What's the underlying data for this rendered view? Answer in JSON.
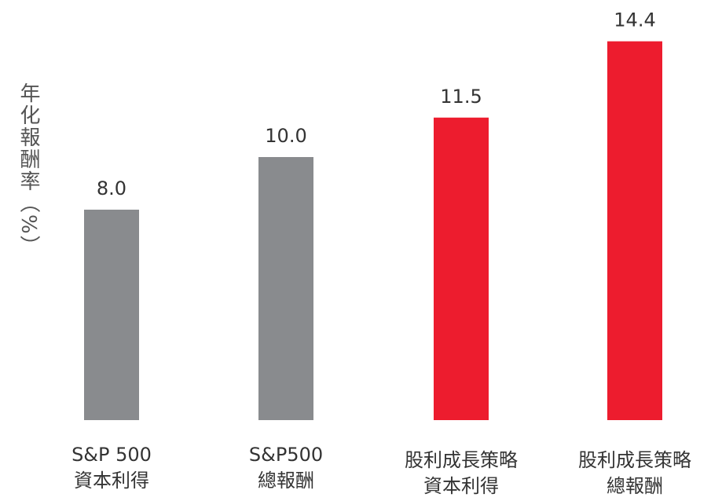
{
  "chart_data": {
    "type": "bar",
    "y_axis_label": "年化報酬率（%）",
    "categories": [
      [
        "S&P 500",
        "資本利得"
      ],
      [
        "S&P500",
        "總報酬"
      ],
      [
        "股利成長策略",
        "資本利得"
      ],
      [
        "股利成長策略",
        "總報酬"
      ]
    ],
    "values": [
      8.0,
      10.0,
      11.5,
      14.4
    ],
    "value_labels": [
      "8.0",
      "10.0",
      "11.5",
      "14.4"
    ],
    "colors": [
      "#898b8e",
      "#898b8e",
      "#ed1c2e",
      "#ed1c2e"
    ],
    "ylim": [
      0,
      16
    ]
  }
}
